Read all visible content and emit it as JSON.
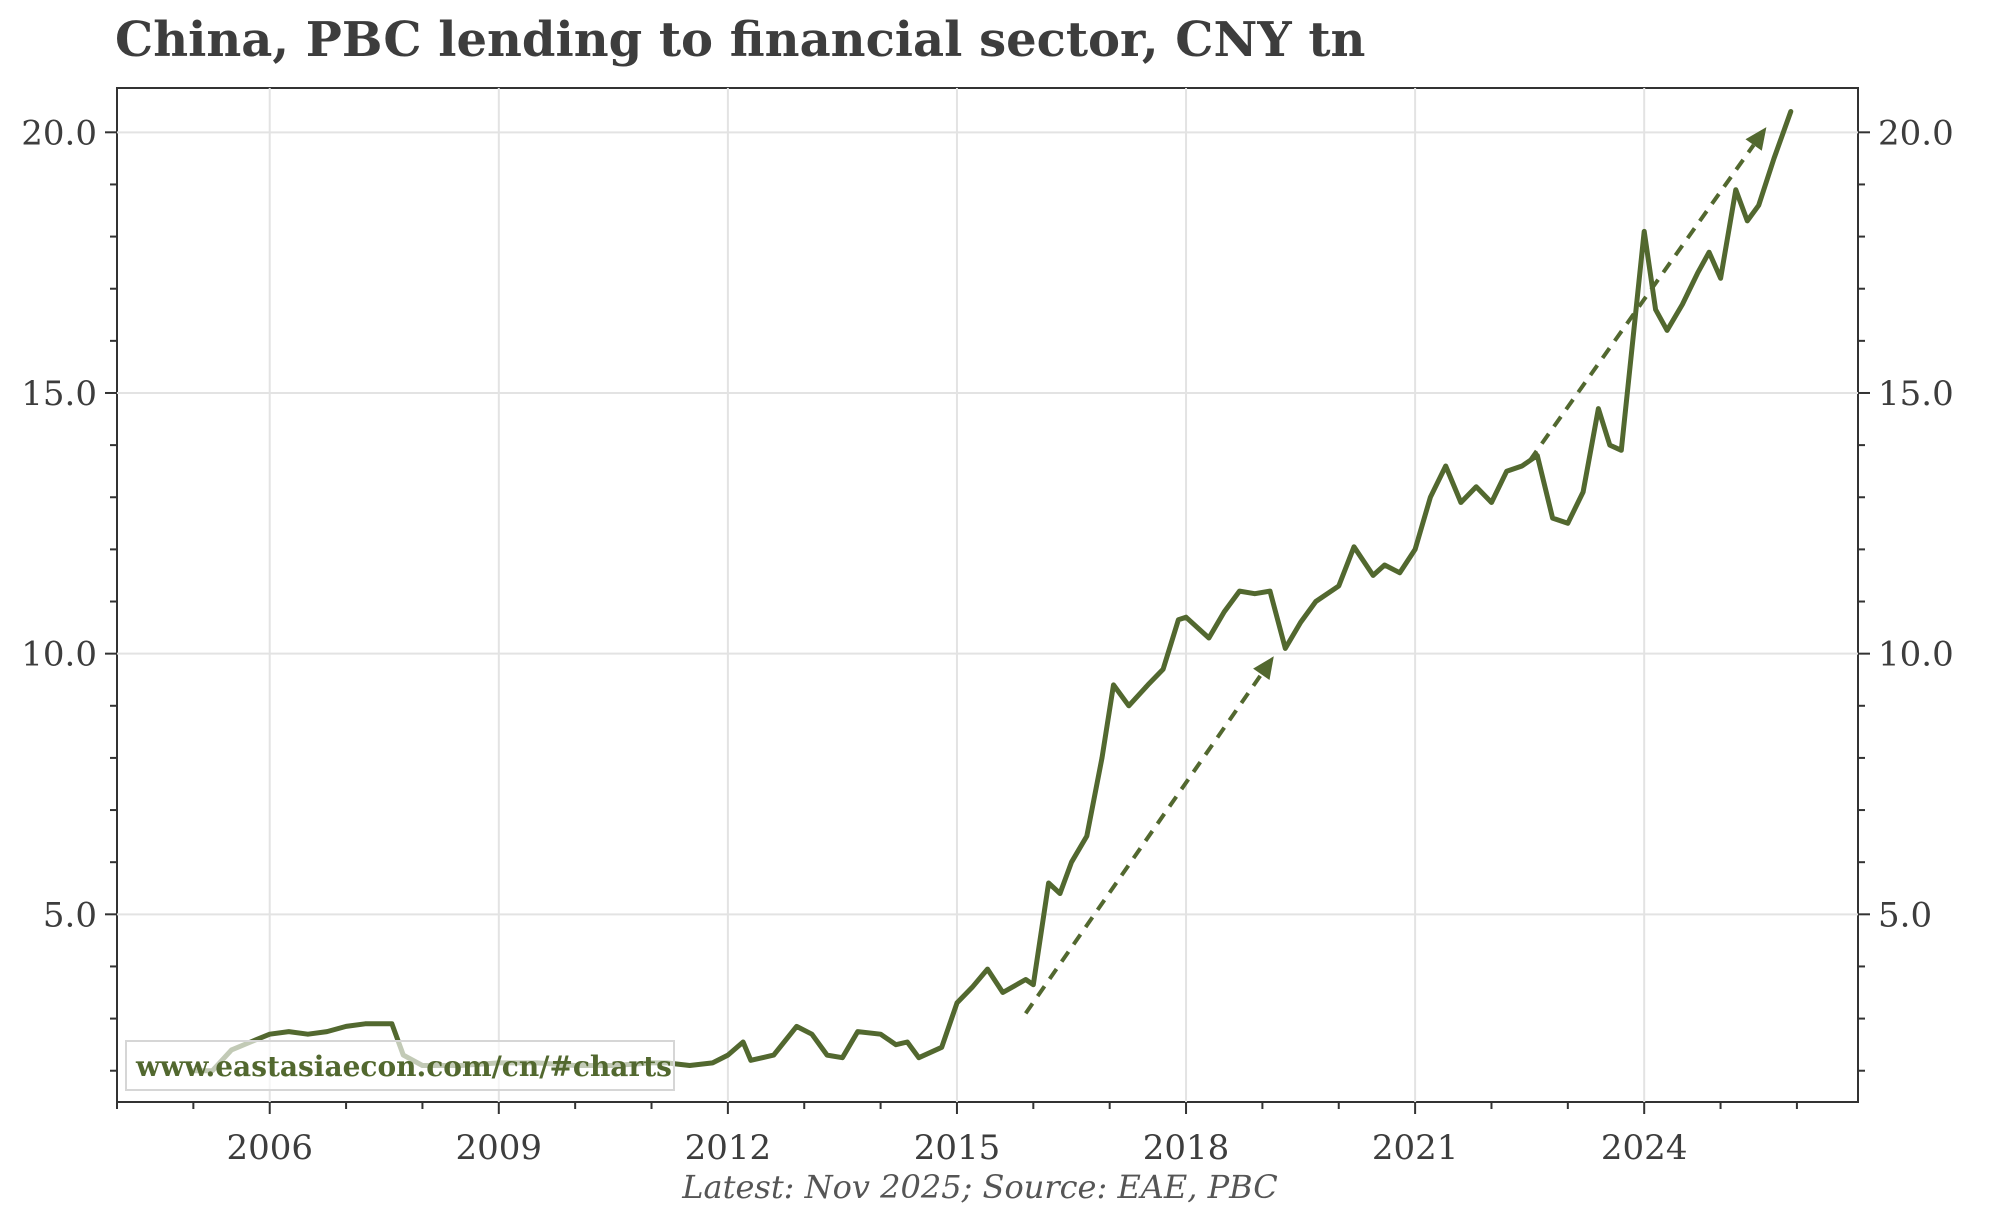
{
  "chart_data": {
    "type": "line",
    "title": "China, PBC lending to financial sector, CNY tn",
    "footnote": "Latest: Nov 2025; Source: EAE, PBC",
    "watermark": "www.eastasiaecon.com/cn/#charts",
    "xlabel": "",
    "ylabel": "",
    "xlim": [
      2004.0,
      2026.8
    ],
    "ylim": [
      1.4,
      20.85
    ],
    "x_ticks": [
      2006,
      2009,
      2012,
      2015,
      2018,
      2021,
      2024
    ],
    "x_tick_labels": [
      "2006",
      "2009",
      "2012",
      "2015",
      "2018",
      "2021",
      "2024"
    ],
    "y_ticks": [
      5.0,
      10.0,
      15.0,
      20.0
    ],
    "y_tick_labels": [
      "5.0",
      "10.0",
      "15.0",
      "20.0"
    ],
    "grid": true,
    "colors": {
      "line": "#52682f",
      "grid": "#e3e3e3",
      "axis": "#333333",
      "text": "#3d3d3d",
      "watermark": "#52682f"
    },
    "series": [
      {
        "x": [
          2005.0,
          2005.25,
          2005.5,
          2005.75,
          2006.0,
          2006.25,
          2006.5,
          2006.75,
          2007.0,
          2007.25,
          2007.5,
          2007.6,
          2007.75,
          2008.0,
          2008.5,
          2009.0,
          2009.5,
          2010.0,
          2010.5,
          2011.0,
          2011.2,
          2011.5,
          2011.8,
          2012.0,
          2012.2,
          2012.3,
          2012.6,
          2012.9,
          2013.1,
          2013.3,
          2013.5,
          2013.7,
          2014.0,
          2014.2,
          2014.35,
          2014.5,
          2014.8,
          2015.0,
          2015.2,
          2015.4,
          2015.6,
          2015.9,
          2016.0,
          2016.2,
          2016.35,
          2016.5,
          2016.7,
          2016.9,
          2017.05,
          2017.25,
          2017.5,
          2017.7,
          2017.9,
          2018.0,
          2018.3,
          2018.5,
          2018.7,
          2018.9,
          2019.1,
          2019.3,
          2019.5,
          2019.7,
          2020.0,
          2020.2,
          2020.45,
          2020.6,
          2020.8,
          2021.0,
          2021.2,
          2021.4,
          2021.6,
          2021.8,
          2022.0,
          2022.2,
          2022.4,
          2022.6,
          2022.8,
          2023.0,
          2023.2,
          2023.4,
          2023.55,
          2023.7,
          2024.0,
          2024.15,
          2024.3,
          2024.5,
          2024.7,
          2024.85,
          2025.0,
          2025.2,
          2025.35,
          2025.5,
          2025.7,
          2025.92
        ],
        "values": [
          2.0,
          2.0,
          2.4,
          2.55,
          2.7,
          2.75,
          2.7,
          2.75,
          2.85,
          2.9,
          2.9,
          2.9,
          2.3,
          2.1,
          2.1,
          2.15,
          2.15,
          2.1,
          2.1,
          2.15,
          2.15,
          2.1,
          2.15,
          2.3,
          2.55,
          2.2,
          2.3,
          2.85,
          2.7,
          2.3,
          2.25,
          2.75,
          2.7,
          2.5,
          2.55,
          2.25,
          2.45,
          3.3,
          3.6,
          3.95,
          3.5,
          3.75,
          3.65,
          5.6,
          5.4,
          6.0,
          6.5,
          8.0,
          9.4,
          9.0,
          9.4,
          9.7,
          10.65,
          10.7,
          10.3,
          10.8,
          11.2,
          11.15,
          11.2,
          10.1,
          10.6,
          11.0,
          11.3,
          12.05,
          11.5,
          11.7,
          11.55,
          12.0,
          13.0,
          13.6,
          12.9,
          13.2,
          12.9,
          13.5,
          13.6,
          13.8,
          12.6,
          12.5,
          13.1,
          14.7,
          14.0,
          13.9,
          18.1,
          16.6,
          16.2,
          16.7,
          17.3,
          17.7,
          17.2,
          18.9,
          18.3,
          18.6,
          19.5,
          20.4
        ]
      }
    ],
    "annotations": [
      {
        "type": "dashed-arrow",
        "from": [
          2015.9,
          3.1
        ],
        "to": [
          2019.15,
          9.95
        ]
      },
      {
        "type": "dashed-arrow",
        "from": [
          2022.5,
          13.7
        ],
        "to": [
          2025.6,
          20.1
        ]
      }
    ]
  }
}
